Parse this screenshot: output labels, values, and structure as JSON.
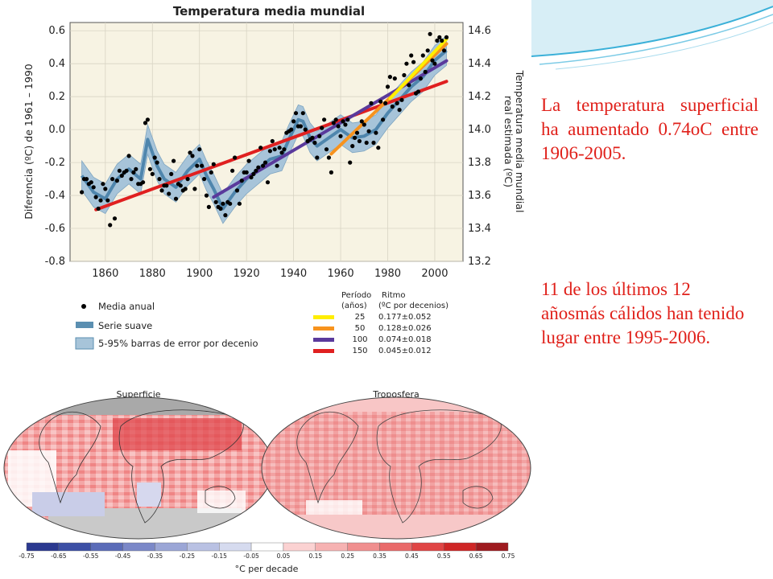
{
  "chart_data": [
    {
      "type": "line",
      "title": "Temperatura media mundial",
      "ylabel": "Diferencia (ºC) de 1961 – 1990",
      "y2label": "Temperatura media mundial real estimada (ºC)",
      "xlim": [
        1845,
        2012
      ],
      "ylim": [
        -0.8,
        0.65
      ],
      "y2lim": [
        13.2,
        14.65
      ],
      "x_ticks": [
        1860,
        1880,
        1900,
        1920,
        1940,
        1960,
        1980,
        2000
      ],
      "y_ticks": [
        "-0.8",
        "-0.6",
        "-0.4",
        "-0.2",
        "0.0",
        "0.2",
        "0.4",
        "0.6"
      ],
      "y2_ticks": [
        "13.2",
        "13.4",
        "13.6",
        "13.8",
        "14.0",
        "14.2",
        "14.4",
        "14.6"
      ],
      "grid": true,
      "annual": {
        "name": "Media anual",
        "x": [
          1850,
          1851,
          1852,
          1853,
          1854,
          1855,
          1856,
          1857,
          1858,
          1859,
          1860,
          1861,
          1862,
          1863,
          1864,
          1865,
          1866,
          1867,
          1868,
          1869,
          1870,
          1871,
          1872,
          1873,
          1874,
          1875,
          1876,
          1877,
          1878,
          1879,
          1880,
          1881,
          1882,
          1883,
          1884,
          1885,
          1886,
          1887,
          1888,
          1889,
          1890,
          1891,
          1892,
          1893,
          1894,
          1895,
          1896,
          1897,
          1898,
          1899,
          1900,
          1901,
          1902,
          1903,
          1904,
          1905,
          1906,
          1907,
          1908,
          1909,
          1910,
          1911,
          1912,
          1913,
          1914,
          1915,
          1916,
          1917,
          1918,
          1919,
          1920,
          1921,
          1922,
          1923,
          1924,
          1925,
          1926,
          1927,
          1928,
          1929,
          1930,
          1931,
          1932,
          1933,
          1934,
          1935,
          1936,
          1937,
          1938,
          1939,
          1940,
          1941,
          1942,
          1943,
          1944,
          1945,
          1946,
          1947,
          1948,
          1949,
          1950,
          1951,
          1952,
          1953,
          1954,
          1955,
          1956,
          1957,
          1958,
          1959,
          1960,
          1961,
          1962,
          1963,
          1964,
          1965,
          1966,
          1967,
          1968,
          1969,
          1970,
          1971,
          1972,
          1973,
          1974,
          1975,
          1976,
          1977,
          1978,
          1979,
          1980,
          1981,
          1982,
          1983,
          1984,
          1985,
          1986,
          1987,
          1988,
          1989,
          1990,
          1991,
          1992,
          1993,
          1994,
          1995,
          1996,
          1997,
          1998,
          1999,
          2000,
          2001,
          2002,
          2003,
          2004,
          2005
        ],
        "y": [
          -0.38,
          -0.3,
          -0.3,
          -0.33,
          -0.32,
          -0.35,
          -0.41,
          -0.48,
          -0.43,
          -0.33,
          -0.36,
          -0.43,
          -0.58,
          -0.3,
          -0.54,
          -0.31,
          -0.25,
          -0.28,
          -0.26,
          -0.25,
          -0.16,
          -0.3,
          -0.26,
          -0.24,
          -0.33,
          -0.33,
          -0.32,
          0.04,
          0.06,
          -0.24,
          -0.27,
          -0.17,
          -0.2,
          -0.3,
          -0.37,
          -0.34,
          -0.34,
          -0.39,
          -0.27,
          -0.19,
          -0.42,
          -0.33,
          -0.34,
          -0.37,
          -0.36,
          -0.3,
          -0.14,
          -0.16,
          -0.36,
          -0.22,
          -0.12,
          -0.22,
          -0.3,
          -0.4,
          -0.47,
          -0.26,
          -0.21,
          -0.44,
          -0.47,
          -0.48,
          -0.45,
          -0.52,
          -0.44,
          -0.45,
          -0.25,
          -0.17,
          -0.37,
          -0.45,
          -0.31,
          -0.26,
          -0.26,
          -0.19,
          -0.29,
          -0.27,
          -0.25,
          -0.23,
          -0.11,
          -0.22,
          -0.2,
          -0.32,
          -0.13,
          -0.07,
          -0.12,
          -0.22,
          -0.11,
          -0.14,
          -0.12,
          -0.02,
          -0.01,
          0.0,
          0.05,
          0.1,
          0.02,
          0.02,
          0.1,
          0.0,
          -0.07,
          -0.06,
          -0.05,
          -0.08,
          -0.17,
          -0.04,
          0.01,
          0.06,
          -0.12,
          -0.17,
          -0.26,
          0.04,
          0.06,
          0.02,
          -0.04,
          0.05,
          0.03,
          0.06,
          -0.2,
          -0.1,
          -0.05,
          -0.02,
          -0.07,
          0.05,
          0.03,
          -0.08,
          -0.01,
          0.16,
          -0.08,
          -0.02,
          -0.11,
          0.17,
          0.06,
          0.16,
          0.26,
          0.32,
          0.14,
          0.31,
          0.16,
          0.12,
          0.18,
          0.33,
          0.4,
          0.27,
          0.45,
          0.41,
          0.22,
          0.23,
          0.31,
          0.45,
          0.35,
          0.48,
          0.58,
          0.42,
          0.4,
          0.54,
          0.56,
          0.54,
          0.48,
          0.56
        ]
      },
      "smooth": {
        "name": "Serie suave",
        "x": [
          1850,
          1855,
          1860,
          1865,
          1870,
          1875,
          1878,
          1882,
          1885,
          1890,
          1895,
          1900,
          1903,
          1906,
          1910,
          1915,
          1920,
          1925,
          1930,
          1935,
          1938,
          1942,
          1944,
          1947,
          1950,
          1955,
          1960,
          1965,
          1970,
          1975,
          1980,
          1985,
          1990,
          1995,
          2000,
          2005
        ],
        "y": [
          -0.28,
          -0.38,
          -0.42,
          -0.3,
          -0.24,
          -0.3,
          -0.06,
          -0.22,
          -0.3,
          -0.35,
          -0.25,
          -0.18,
          -0.28,
          -0.36,
          -0.48,
          -0.38,
          -0.3,
          -0.24,
          -0.18,
          -0.16,
          -0.06,
          0.06,
          0.05,
          -0.05,
          -0.1,
          -0.05,
          0.0,
          -0.05,
          -0.04,
          0.0,
          0.1,
          0.18,
          0.26,
          0.32,
          0.42,
          0.48
        ]
      },
      "error_band": {
        "name": "5-95% barras de error por decenio",
        "width": 0.09
      },
      "trends": {
        "header_period": "Período",
        "header_period_units": "(años)",
        "header_rate": "Ritmo",
        "header_rate_units": "(ºC por decenios)",
        "items": [
          {
            "period": "25",
            "rate": "0.177±0.052",
            "color": "#ffee00",
            "x0": 1981,
            "x1": 2005
          },
          {
            "period": "50",
            "rate": "0.128±0.026",
            "color": "#f7931e",
            "x0": 1956,
            "x1": 2005
          },
          {
            "period": "100",
            "rate": "0.074±0.018",
            "color": "#5a3a9c",
            "x0": 1906,
            "x1": 2005
          },
          {
            "period": "150",
            "rate": "0.045±0.012",
            "color": "#e02020",
            "x0": 1856,
            "x1": 2005
          }
        ]
      }
    },
    {
      "type": "heatmap",
      "panels": [
        "Superficie",
        "Troposfera"
      ],
      "colorbar_ticks": [
        "-0.75",
        "-0.65",
        "-0.55",
        "-0.45",
        "-0.35",
        "-0.25",
        "-0.15",
        "-0.05",
        "0.05",
        "0.15",
        "0.25",
        "0.35",
        "0.45",
        "0.55",
        "0.65",
        "0.75"
      ],
      "colorbar_label": "°C per decade"
    }
  ],
  "side": {
    "text1": "La temperatura superficial ha aumentado 0.74oC entre 1906-2005.",
    "text2": "11 de los últimos 12 añosmás cálidos han tenido lugar entre 1995-2006."
  }
}
